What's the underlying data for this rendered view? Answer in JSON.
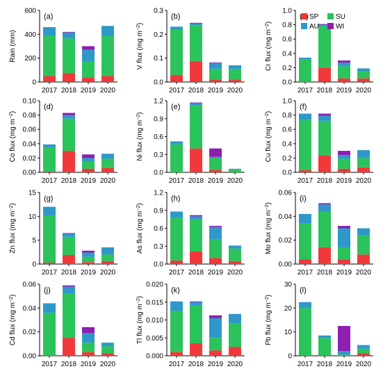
{
  "colors": {
    "SP": "#f0393a",
    "SU": "#2bc35b",
    "AU": "#2f98c9",
    "WI": "#8e1fb1"
  },
  "legend": [
    {
      "key": "SP",
      "label": "SP",
      "color": "#f0393a"
    },
    {
      "key": "SU",
      "label": "SU",
      "color": "#2bc35b"
    },
    {
      "key": "AU",
      "label": "AU",
      "color": "#2f98c9"
    },
    {
      "key": "WI",
      "label": "WI",
      "color": "#8e1fb1"
    }
  ],
  "chart_data": [
    {
      "type": "bar",
      "stacked": true,
      "panel": "(a)",
      "ylabel": "Rain (mm)",
      "ylim": [
        0,
        600
      ],
      "yticks": [
        "0",
        "200",
        "400",
        "600"
      ],
      "categories": [
        "2017",
        "2018",
        "2019",
        "2020"
      ],
      "series": [
        {
          "name": "SP",
          "values": [
            50,
            75,
            35,
            50
          ]
        },
        {
          "name": "SU",
          "values": [
            340,
            290,
            140,
            335
          ]
        },
        {
          "name": "AU",
          "values": [
            70,
            50,
            95,
            85
          ]
        },
        {
          "name": "WI",
          "values": [
            0,
            5,
            30,
            0
          ]
        }
      ]
    },
    {
      "type": "bar",
      "stacked": true,
      "panel": "(b)",
      "ylabel": "V flux (mg m−2)",
      "ylim": [
        0,
        0.3
      ],
      "yticks": [
        "0.0",
        "0.1",
        "0.2",
        "0.3"
      ],
      "categories": [
        "2017",
        "2018",
        "2019",
        "2020"
      ],
      "series": [
        {
          "name": "SP",
          "values": [
            0.03,
            0.088,
            0.01,
            0.01
          ]
        },
        {
          "name": "SU",
          "values": [
            0.19,
            0.15,
            0.045,
            0.045
          ]
        },
        {
          "name": "AU",
          "values": [
            0.012,
            0.008,
            0.025,
            0.015
          ]
        },
        {
          "name": "WI",
          "values": [
            0.0,
            0.002,
            0.002,
            0.0
          ]
        }
      ]
    },
    {
      "type": "bar",
      "stacked": true,
      "panel": "(c)",
      "ylabel": "Cr flux (mg m−2)",
      "ylim": [
        0,
        1.0
      ],
      "yticks": [
        "0.0",
        "0.2",
        "0.4",
        "0.6",
        "0.8",
        "1.0"
      ],
      "categories": [
        "2017",
        "2018",
        "2019",
        "2020"
      ],
      "legend_position": "top-right",
      "series": [
        {
          "name": "SP",
          "values": [
            0.0,
            0.2,
            0.05,
            0.05
          ]
        },
        {
          "name": "SU",
          "values": [
            0.32,
            0.58,
            0.17,
            0.1
          ]
        },
        {
          "name": "AU",
          "values": [
            0.02,
            0.02,
            0.05,
            0.04
          ]
        },
        {
          "name": "WI",
          "values": [
            0.0,
            0.01,
            0.03,
            0.0
          ]
        }
      ]
    },
    {
      "type": "bar",
      "stacked": true,
      "panel": "(d)",
      "ylabel": "Co flux (mg m−2)",
      "ylim": [
        0,
        0.1
      ],
      "yticks": [
        "0.00",
        "0.02",
        "0.04",
        "0.06",
        "0.08",
        "0.10"
      ],
      "categories": [
        "2017",
        "2018",
        "2019",
        "2020"
      ],
      "series": [
        {
          "name": "SP",
          "values": [
            0.001,
            0.03,
            0.005,
            0.006
          ]
        },
        {
          "name": "SU",
          "values": [
            0.034,
            0.045,
            0.01,
            0.013
          ]
        },
        {
          "name": "AU",
          "values": [
            0.004,
            0.005,
            0.005,
            0.007
          ]
        },
        {
          "name": "WI",
          "values": [
            0.0,
            0.003,
            0.005,
            0.0
          ]
        }
      ]
    },
    {
      "type": "bar",
      "stacked": true,
      "panel": "(e)",
      "ylabel": "Ni flux (mg m−2)",
      "ylim": [
        0,
        1.2
      ],
      "yticks": [
        "0.0",
        "0.3",
        "0.6",
        "0.9",
        "1.2"
      ],
      "categories": [
        "2017",
        "2018",
        "2019",
        "2020"
      ],
      "series": [
        {
          "name": "SP",
          "values": [
            0.0,
            0.4,
            0.04,
            0.0
          ]
        },
        {
          "name": "SU",
          "values": [
            0.47,
            0.72,
            0.2,
            0.05
          ]
        },
        {
          "name": "AU",
          "values": [
            0.05,
            0.04,
            0.02,
            0.01
          ]
        },
        {
          "name": "WI",
          "values": [
            0.0,
            0.01,
            0.14,
            0.0
          ]
        }
      ]
    },
    {
      "type": "bar",
      "stacked": true,
      "panel": "(f)",
      "ylabel": "Cu flux (mg m−2)",
      "ylim": [
        0,
        1.0
      ],
      "yticks": [
        "0.0",
        "0.2",
        "0.4",
        "0.6",
        "0.8",
        "1.0"
      ],
      "categories": [
        "2017",
        "2018",
        "2019",
        "2020"
      ],
      "series": [
        {
          "name": "SP",
          "values": [
            0.03,
            0.24,
            0.05,
            0.07
          ]
        },
        {
          "name": "SU",
          "values": [
            0.7,
            0.48,
            0.14,
            0.13
          ]
        },
        {
          "name": "AU",
          "values": [
            0.09,
            0.07,
            0.05,
            0.11
          ]
        },
        {
          "name": "WI",
          "values": [
            0.0,
            0.03,
            0.06,
            0.0
          ]
        }
      ]
    },
    {
      "type": "bar",
      "stacked": true,
      "panel": "(g)",
      "ylabel": "Zn flux (mg m−2)",
      "ylim": [
        0,
        15
      ],
      "yticks": [
        "0",
        "5",
        "10",
        "15"
      ],
      "categories": [
        "2017",
        "2018",
        "2019",
        "2020"
      ],
      "series": [
        {
          "name": "SP",
          "values": [
            0.3,
            1.9,
            0.4,
            0.6
          ]
        },
        {
          "name": "SU",
          "values": [
            9.9,
            3.8,
            1.1,
            1.4
          ]
        },
        {
          "name": "AU",
          "values": [
            1.8,
            0.7,
            0.9,
            1.5
          ]
        },
        {
          "name": "WI",
          "values": [
            0.0,
            0.1,
            0.4,
            0.0
          ]
        }
      ]
    },
    {
      "type": "bar",
      "stacked": true,
      "panel": "(h)",
      "ylabel": "As flux (mg m−2)",
      "ylim": [
        0,
        1.2
      ],
      "yticks": [
        "0.0",
        "0.3",
        "0.6",
        "0.9",
        "1.2"
      ],
      "categories": [
        "2017",
        "2018",
        "2019",
        "2020"
      ],
      "series": [
        {
          "name": "SP",
          "values": [
            0.06,
            0.21,
            0.1,
            0.05
          ]
        },
        {
          "name": "SU",
          "values": [
            0.72,
            0.54,
            0.32,
            0.21
          ]
        },
        {
          "name": "AU",
          "values": [
            0.1,
            0.05,
            0.2,
            0.05
          ]
        },
        {
          "name": "WI",
          "values": [
            0.0,
            0.02,
            0.02,
            0.0
          ]
        }
      ]
    },
    {
      "type": "bar",
      "stacked": true,
      "panel": "(i)",
      "ylabel": "Mo flux (mg m−2)",
      "ylim": [
        0,
        0.06
      ],
      "yticks": [
        "0.00",
        "0.02",
        "0.04",
        "0.06"
      ],
      "categories": [
        "2017",
        "2018",
        "2019",
        "2020"
      ],
      "series": [
        {
          "name": "SP",
          "values": [
            0.004,
            0.014,
            0.004,
            0.008
          ]
        },
        {
          "name": "SU",
          "values": [
            0.03,
            0.03,
            0.01,
            0.016
          ]
        },
        {
          "name": "AU",
          "values": [
            0.008,
            0.006,
            0.016,
            0.006
          ]
        },
        {
          "name": "WI",
          "values": [
            0.0,
            0.001,
            0.002,
            0.0
          ]
        }
      ]
    },
    {
      "type": "bar",
      "stacked": true,
      "panel": "(j)",
      "ylabel": "Cd flux (mg m−2)",
      "ylim": [
        0,
        0.06
      ],
      "yticks": [
        "0.00",
        "0.02",
        "0.04",
        "0.06"
      ],
      "categories": [
        "2017",
        "2018",
        "2019",
        "2020"
      ],
      "series": [
        {
          "name": "SP",
          "values": [
            0.0,
            0.015,
            0.003,
            0.002
          ]
        },
        {
          "name": "SU",
          "values": [
            0.036,
            0.037,
            0.008,
            0.006
          ]
        },
        {
          "name": "AU",
          "values": [
            0.008,
            0.006,
            0.008,
            0.003
          ]
        },
        {
          "name": "WI",
          "values": [
            0.0,
            0.001,
            0.005,
            0.0
          ]
        }
      ]
    },
    {
      "type": "bar",
      "stacked": true,
      "panel": "(k)",
      "ylabel": "Tl flux (mg m−2)",
      "ylim": [
        0,
        0.02
      ],
      "yticks": [
        "0.000",
        "0.005",
        "0.010",
        "0.015",
        "0.020"
      ],
      "categories": [
        "2017",
        "2018",
        "2019",
        "2020"
      ],
      "series": [
        {
          "name": "SP",
          "values": [
            0.001,
            0.0035,
            0.0015,
            0.0025
          ]
        },
        {
          "name": "SU",
          "values": [
            0.0115,
            0.0105,
            0.0035,
            0.0065
          ]
        },
        {
          "name": "AU",
          "values": [
            0.0027,
            0.001,
            0.0055,
            0.0027
          ]
        },
        {
          "name": "WI",
          "values": [
            0.0,
            0.0002,
            0.0008,
            0.0
          ]
        }
      ]
    },
    {
      "type": "bar",
      "stacked": true,
      "panel": "(l)",
      "ylabel": "Pb flux (mg m−2)",
      "ylim": [
        0,
        30
      ],
      "yticks": [
        "0",
        "10",
        "20",
        "30"
      ],
      "categories": [
        "2017",
        "2018",
        "2019",
        "2020"
      ],
      "series": [
        {
          "name": "SP",
          "values": [
            0.0,
            0.0,
            0.2,
            1.0
          ]
        },
        {
          "name": "SU",
          "values": [
            20.0,
            7.5,
            0.3,
            2.0
          ]
        },
        {
          "name": "AU",
          "values": [
            2.5,
            1.0,
            1.5,
            1.5
          ]
        },
        {
          "name": "WI",
          "values": [
            0.0,
            0.0,
            10.5,
            0.0
          ]
        }
      ]
    }
  ]
}
